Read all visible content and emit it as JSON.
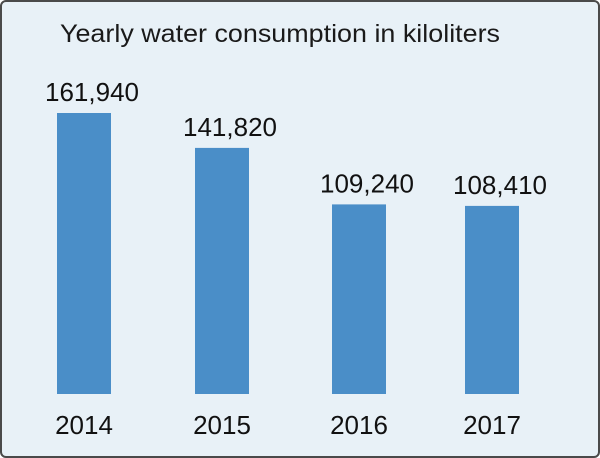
{
  "chart_data": {
    "type": "bar",
    "title": "Yearly water consumption in kiloliters",
    "categories": [
      "2014",
      "2015",
      "2016",
      "2017"
    ],
    "values": [
      161940,
      141820,
      109240,
      108410
    ],
    "value_labels": [
      "161,940",
      "141,820",
      "109,240",
      "108,410"
    ],
    "ylim": [
      0,
      200000
    ],
    "grid": false,
    "legend": "none",
    "colors": {
      "bar": "#4a8ec8",
      "background": "#e8f1f7",
      "border": "#4a4a4a",
      "text": "#111111"
    }
  }
}
